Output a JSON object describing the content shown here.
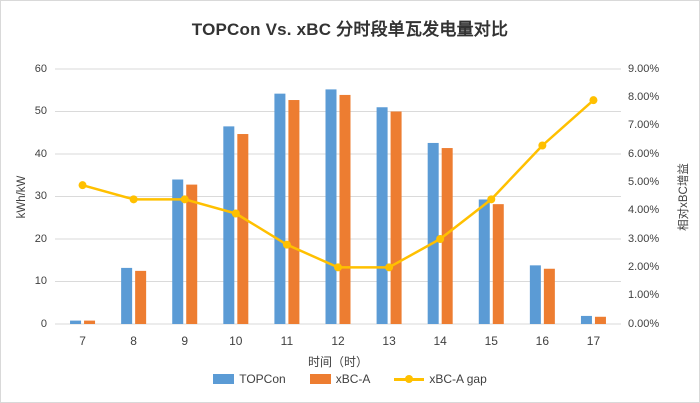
{
  "chart_data": {
    "type": "bar",
    "combo": "bar+line",
    "title": "TOPCon Vs. xBC 分时段单瓦发电量对比",
    "xlabel": "时间（时）",
    "categories": [
      "7",
      "8",
      "9",
      "10",
      "11",
      "12",
      "13",
      "14",
      "15",
      "16",
      "17"
    ],
    "series": [
      {
        "name": "TOPCon",
        "type": "bar",
        "axis": "left",
        "color": "#5B9BD5",
        "values": [
          0.8,
          13.2,
          34.0,
          46.5,
          54.2,
          55.2,
          51.0,
          42.6,
          29.3,
          13.8,
          1.9
        ]
      },
      {
        "name": "xBC-A",
        "type": "bar",
        "axis": "left",
        "color": "#ED7D31",
        "values": [
          0.8,
          12.5,
          32.8,
          44.7,
          52.7,
          53.9,
          50.0,
          41.4,
          28.2,
          13.0,
          1.7
        ]
      },
      {
        "name": "xBC-A gap",
        "type": "line",
        "axis": "right",
        "color": "#FFC000",
        "values": [
          4.9,
          4.4,
          4.4,
          3.9,
          2.8,
          2.0,
          2.0,
          3.0,
          4.4,
          6.3,
          7.9
        ]
      }
    ],
    "y_left": {
      "label": "kWh/kW",
      "min": 0,
      "max": 60,
      "ticks": [
        "0",
        "10",
        "20",
        "30",
        "40",
        "50",
        "60"
      ]
    },
    "y_right": {
      "label": "相对xBC增益",
      "min": 0,
      "max": 9,
      "ticks": [
        "0.00%",
        "1.00%",
        "2.00%",
        "3.00%",
        "4.00%",
        "5.00%",
        "6.00%",
        "7.00%",
        "8.00%",
        "9.00%"
      ]
    },
    "grid": true,
    "gridline_color": "#dadada",
    "legend_position": "bottom",
    "legend": [
      "TOPCon",
      "xBC-A",
      "xBC-A gap"
    ]
  }
}
